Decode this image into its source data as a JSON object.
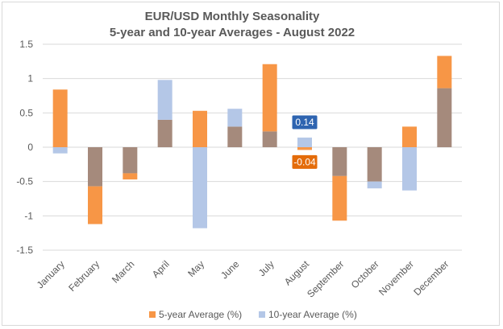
{
  "chart_data": {
    "type": "bar",
    "title": "EUR/USD Monthly Seasonality",
    "subtitle": "5-year and 10-year Averages - August 2022",
    "categories": [
      "January",
      "February",
      "March",
      "April",
      "May",
      "June",
      "July",
      "August",
      "September",
      "October",
      "November",
      "December"
    ],
    "series": [
      {
        "name": "5-year Average (%)",
        "color": "#f79646",
        "values": [
          0.84,
          -1.12,
          -0.47,
          0.4,
          0.53,
          0.3,
          1.21,
          -0.04,
          -1.07,
          -0.5,
          0.3,
          1.33
        ]
      },
      {
        "name": "10-year Average (%)",
        "color": "#b4c7e7",
        "values": [
          -0.09,
          -0.57,
          -0.38,
          0.98,
          -1.18,
          0.56,
          0.23,
          0.14,
          -0.42,
          -0.6,
          -0.63,
          0.86
        ]
      }
    ],
    "overlap_color": "#a58a7c",
    "yticks": [
      "1.5",
      "1",
      "0.5",
      "0",
      "-0.5",
      "-1",
      "-1.5"
    ],
    "ylim": [
      -1.5,
      1.5
    ],
    "grid": true,
    "legend": "bottom",
    "annotations": [
      {
        "category": "August",
        "series": "10-year Average (%)",
        "text": "0.14",
        "color": "#2e64b0"
      },
      {
        "category": "August",
        "series": "5-year Average (%)",
        "text": "-0.04",
        "color": "#e46c0a"
      }
    ]
  }
}
